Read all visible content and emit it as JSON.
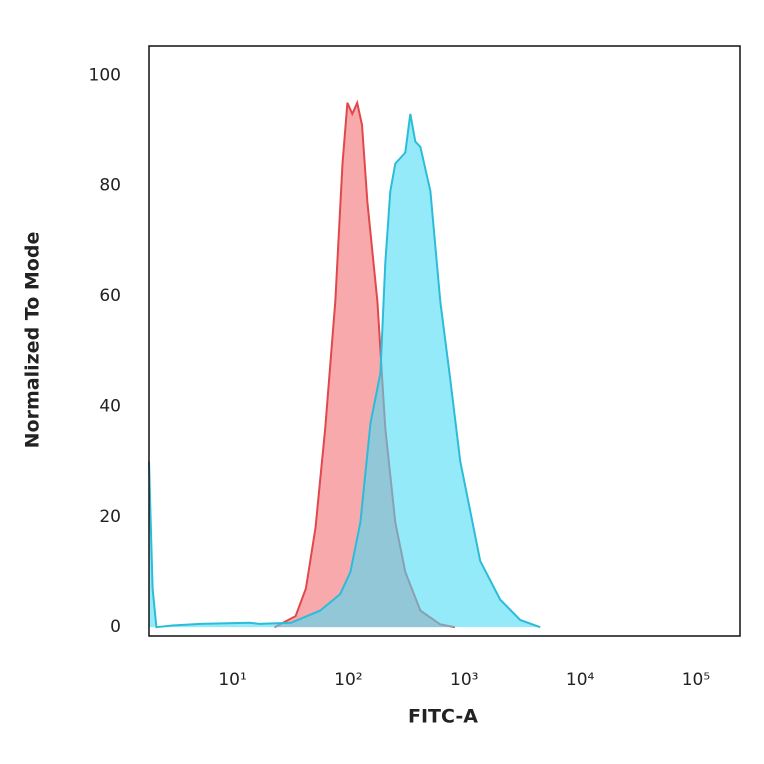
{
  "chart_data": {
    "type": "histogram-overlay",
    "x_label": "FITC-A",
    "y_label": "Normalized To Mode",
    "xscale": "log",
    "xlim": [
      1.9,
      240000
    ],
    "xticks": [
      {
        "value": 10,
        "label": "10¹"
      },
      {
        "value": 100,
        "label": "10²"
      },
      {
        "value": 1000,
        "label": "10³"
      },
      {
        "value": 10000,
        "label": "10⁴"
      },
      {
        "value": 100000,
        "label": "10⁵"
      }
    ],
    "ylim": [
      -1.6,
      105.3
    ],
    "yticks": [
      0,
      20,
      40,
      60,
      80,
      100
    ],
    "grid": false,
    "series": [
      {
        "color": "#e0484c",
        "fill": "#f79a9c",
        "x": [
          23,
          35,
          43,
          52,
          63,
          77,
          89,
          98,
          108,
          119,
          131,
          146,
          161,
          178,
          208,
          254,
          310,
          418,
          621,
          830
        ],
        "values": [
          0,
          2,
          7,
          18,
          36,
          59,
          84,
          95,
          93,
          95,
          91,
          77,
          68,
          59,
          36,
          19,
          10,
          3,
          0.5,
          0
        ]
      },
      {
        "color": "#2cbcd8",
        "fill": "#4fdcf7",
        "x": [
          1.9,
          2.04,
          2.2,
          3,
          5.3,
          14,
          17,
          32,
          57,
          85,
          104,
          127,
          155,
          189,
          208,
          230,
          254,
          281,
          310,
          342,
          378,
          418,
          510,
          621,
          757,
          925,
          1127,
          1374,
          2044,
          3040,
          4520
        ],
        "values": [
          30,
          7,
          0,
          0.3,
          0.6,
          0.8,
          0.6,
          0.8,
          3,
          6,
          10,
          19,
          37,
          46,
          66,
          79,
          84,
          85,
          86,
          93,
          88,
          87,
          79,
          59,
          45,
          30,
          21,
          12,
          5,
          1.3,
          0
        ]
      }
    ]
  }
}
